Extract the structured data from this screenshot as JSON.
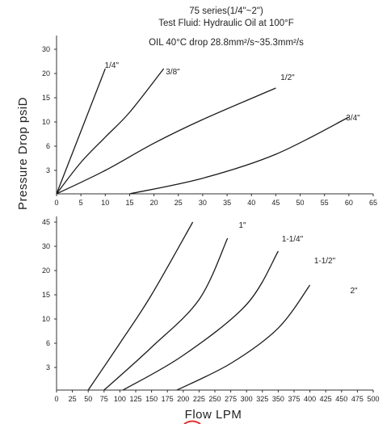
{
  "header": {
    "line1": "75 series(1/4\"~2\")",
    "line2": "Test Fluid: Hydraulic Oil at 100°F",
    "line3": "OIL 40°C drop 28.8mm²/s~35.3mm²/s"
  },
  "ylabel": "Pressure Drop psiD",
  "xlabel": "Flow LPM",
  "chart_data": [
    {
      "type": "line",
      "x_ticks": [
        0,
        5,
        10,
        15,
        20,
        25,
        30,
        35,
        40,
        45,
        50,
        55,
        60,
        65
      ],
      "y_ticks": [
        "3",
        "6",
        "10",
        "15",
        "20",
        "30"
      ],
      "xlim": [
        0,
        65
      ],
      "series": [
        {
          "name": "1/4\"",
          "x": [
            0,
            10
          ],
          "y": [
            0,
            22
          ]
        },
        {
          "name": "3/8\"",
          "x": [
            0,
            5,
            10,
            15,
            22
          ],
          "y": [
            0,
            4,
            7.5,
            12,
            22
          ]
        },
        {
          "name": "1/2\"",
          "x": [
            0,
            10,
            20,
            30,
            45
          ],
          "y": [
            0,
            3,
            6.5,
            10.5,
            17
          ]
        },
        {
          "name": "3/4\"",
          "x": [
            15,
            30,
            45,
            60
          ],
          "y": [
            0,
            2,
            5,
            11
          ]
        }
      ]
    },
    {
      "type": "line",
      "x_ticks": [
        0,
        25,
        50,
        75,
        100,
        125,
        150,
        175,
        200,
        225,
        250,
        275,
        300,
        325,
        350,
        375,
        400,
        425,
        450,
        475,
        500
      ],
      "y_ticks": [
        "3",
        "6",
        "10",
        "15",
        "20",
        "30",
        "45"
      ],
      "xlim": [
        0,
        500
      ],
      "series": [
        {
          "name": "1\"",
          "x": [
            50,
            100,
            150,
            215
          ],
          "y": [
            0,
            6,
            15,
            45
          ]
        },
        {
          "name": "1-1/4\"",
          "x": [
            75,
            150,
            225,
            270
          ],
          "y": [
            0,
            5.5,
            14,
            35
          ]
        },
        {
          "name": "1-1/2\"",
          "x": [
            105,
            200,
            300,
            350
          ],
          "y": [
            0,
            4.5,
            13,
            28
          ]
        },
        {
          "name": "2\"",
          "x": [
            190,
            275,
            350,
            400
          ],
          "y": [
            0,
            3.5,
            8.5,
            17
          ]
        }
      ]
    }
  ]
}
